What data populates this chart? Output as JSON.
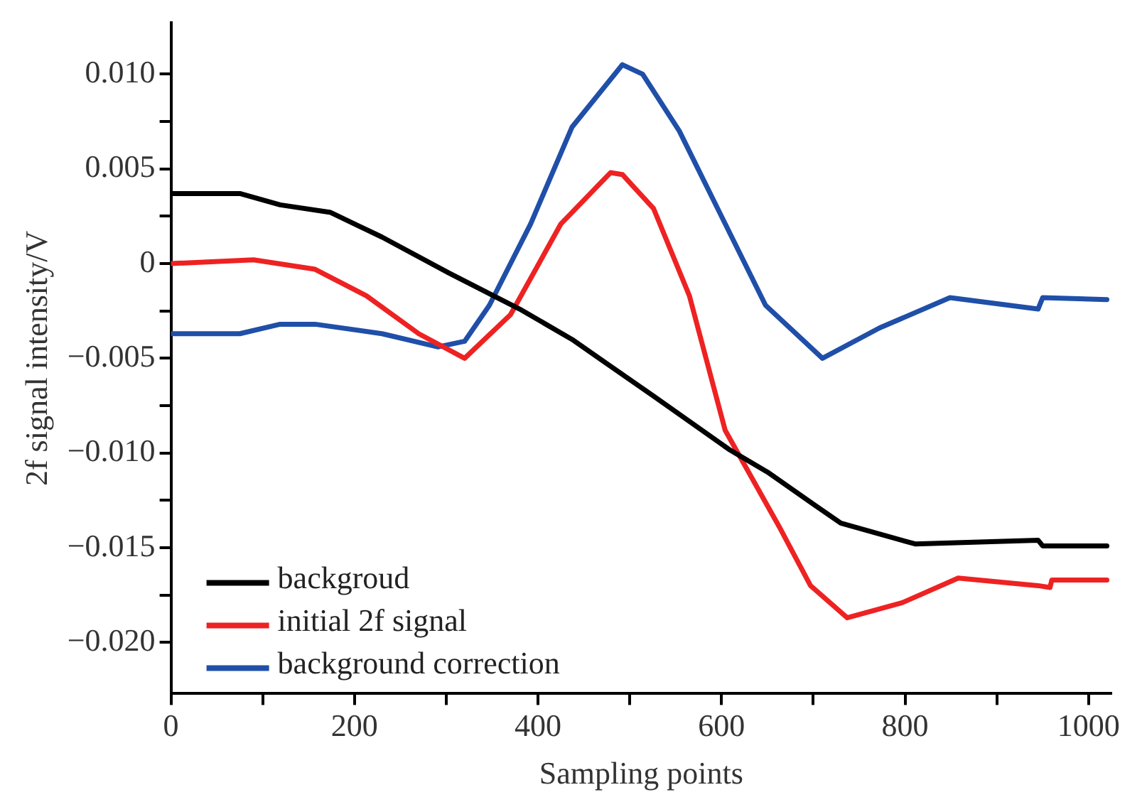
{
  "chart_data": {
    "type": "line",
    "xlabel": "Sampling points",
    "ylabel": "2f signal intensity/V",
    "xlim": [
      0,
      1025
    ],
    "ylim": [
      -0.0227,
      0.0127
    ],
    "xticks": [
      0,
      {
        "value": 100,
        "label": null
      },
      200,
      {
        "value": 300,
        "label": null
      },
      400,
      {
        "value": 500,
        "label": null
      },
      600,
      {
        "value": 700,
        "label": null
      },
      800,
      {
        "value": 900,
        "label": null
      },
      1000
    ],
    "yticks": [
      {
        "value": -0.02,
        "label": "−0.020"
      },
      {
        "value": -0.0175,
        "label": null
      },
      {
        "value": -0.015,
        "label": "−0.015"
      },
      {
        "value": -0.0125,
        "label": null
      },
      {
        "value": -0.01,
        "label": "−0.010"
      },
      {
        "value": -0.0075,
        "label": null
      },
      {
        "value": -0.005,
        "label": "−0.005"
      },
      {
        "value": -0.0025,
        "label": null
      },
      {
        "value": 0,
        "label": "0"
      },
      {
        "value": 0.0025,
        "label": null
      },
      {
        "value": 0.005,
        "label": "0.005"
      },
      {
        "value": 0.0075,
        "label": null
      },
      {
        "value": 0.01,
        "label": "0.010"
      }
    ],
    "grid": false,
    "legend": "bottom left",
    "marker": "none",
    "line_style": "solid",
    "series": [
      {
        "name": "backgroud",
        "color": "#000000",
        "x": [
          0,
          75,
          119,
          174,
          230,
          303,
          380,
          437,
          526,
          608,
          650,
          700,
          730,
          811,
          945,
          950,
          1020
        ],
        "values": [
          0.0037,
          0.0037,
          0.0031,
          0.0027,
          0.0014,
          -0.0005,
          -0.0024,
          -0.004,
          -0.007,
          -0.0098,
          -0.011,
          -0.0127,
          -0.0137,
          -0.0148,
          -0.0146,
          -0.0149,
          -0.0149
        ]
      },
      {
        "name": "initial 2f signal",
        "color": "#ee2222",
        "x": [
          0,
          90,
          157,
          213,
          270,
          320,
          370,
          425,
          479,
          492,
          526,
          565,
          604,
          663,
          697,
          737,
          797,
          858,
          945,
          958,
          960,
          1020
        ],
        "values": [
          0,
          0.0002,
          -0.0003,
          -0.0017,
          -0.0037,
          -0.005,
          -0.0027,
          0.0021,
          0.0048,
          0.0047,
          0.0029,
          -0.0017,
          -0.0088,
          -0.0139,
          -0.017,
          -0.0187,
          -0.0179,
          -0.0166,
          -0.017,
          -0.0171,
          -0.0167,
          -0.0167
        ]
      },
      {
        "name": "background correction",
        "color": "#1f4fa8",
        "x": [
          0,
          75,
          119,
          157,
          230,
          291,
          320,
          347,
          392,
          437,
          492,
          514,
          554,
          604,
          648,
          710,
          772,
          849,
          945,
          950,
          1020
        ],
        "values": [
          -0.0037,
          -0.0037,
          -0.0032,
          -0.0032,
          -0.0037,
          -0.0044,
          -0.0041,
          -0.0022,
          0.0021,
          0.0072,
          0.0105,
          0.01,
          0.007,
          0.0021,
          -0.0022,
          -0.005,
          -0.0034,
          -0.0018,
          -0.0024,
          -0.0018,
          -0.0019
        ]
      }
    ]
  }
}
